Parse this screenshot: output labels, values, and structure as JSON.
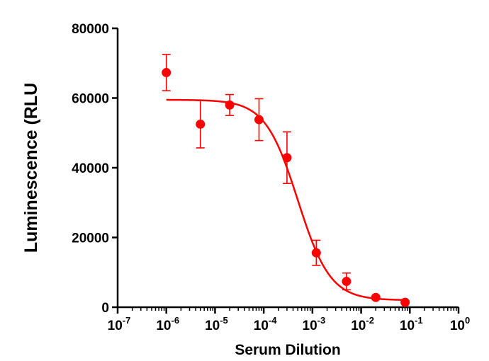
{
  "chart_data": {
    "type": "scatter",
    "xlabel": "Serum Dilution",
    "ylabel": "Luminescence (RLU",
    "xscale": "log",
    "xlim": [
      1e-07,
      1
    ],
    "ylim": [
      0,
      80000
    ],
    "y_ticks": [
      0,
      20000,
      40000,
      60000,
      80000
    ],
    "y_tick_labels": [
      "0",
      "20000",
      "40000",
      "60000",
      "80000"
    ],
    "x_tick_bases": [
      "10",
      "10",
      "10",
      "10",
      "10",
      "10",
      "10",
      "10"
    ],
    "x_tick_exponents": [
      "-7",
      "-6",
      "-5",
      "-4",
      "-3",
      "-2",
      "-1",
      "0"
    ],
    "x_tick_values": [
      1e-07,
      1e-06,
      1e-05,
      0.0001,
      0.001,
      0.01,
      0.1,
      1
    ],
    "grid": false,
    "legend": "none",
    "color": "#ff0000",
    "series": [
      {
        "x": [
          1e-06,
          5e-06,
          2e-05,
          8e-05,
          0.0003,
          0.0012,
          0.005,
          0.02,
          0.08
        ],
        "y": [
          67300,
          52500,
          58000,
          53800,
          42900,
          15600,
          7400,
          2800,
          1400
        ],
        "error": [
          5200,
          6800,
          3000,
          6000,
          7400,
          3600,
          2400,
          500,
          400
        ]
      }
    ],
    "fit": {
      "model": "four-parameter logistic",
      "top": 59500,
      "bottom": 2000,
      "ic50": 0.0005,
      "hill": 1.3,
      "x_range": [
        1e-06,
        0.08
      ]
    }
  }
}
